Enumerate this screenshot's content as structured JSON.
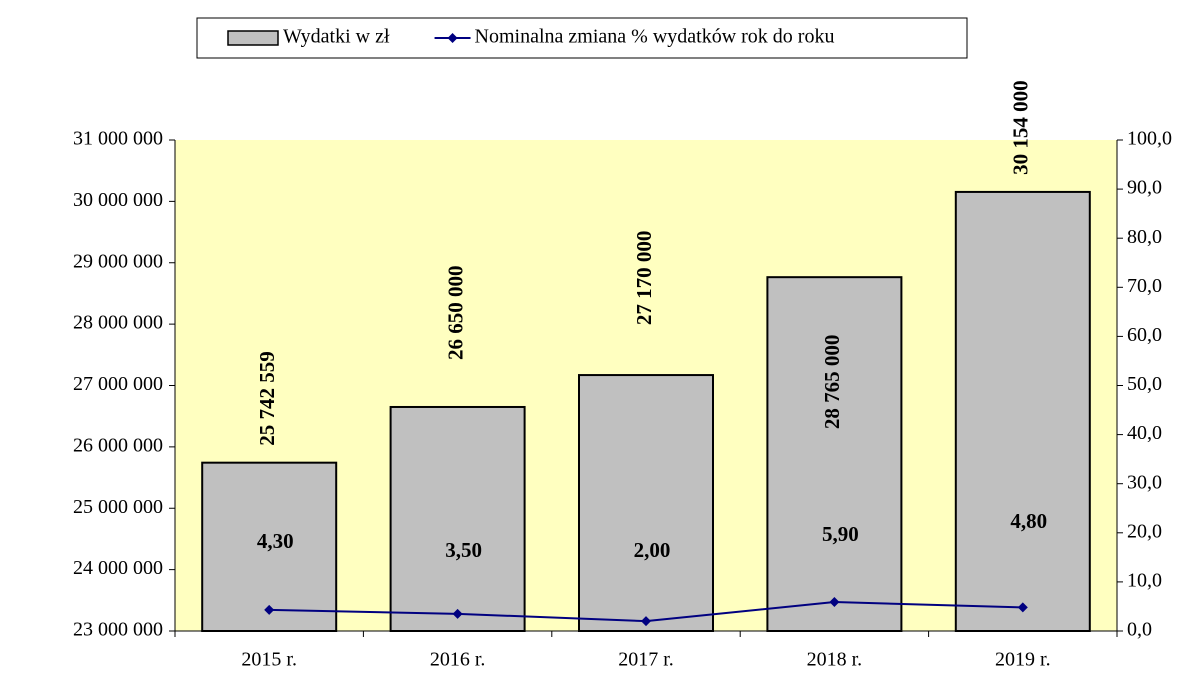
{
  "chart_data": {
    "type": "bar",
    "categories": [
      "2015 r.",
      "2016 r.",
      "2017 r.",
      "2018 r.",
      "2019 r."
    ],
    "series": [
      {
        "name": "Wydatki w zł",
        "type": "bar",
        "color": "#c0c0c0",
        "values": [
          25742559,
          26650000,
          27170000,
          28765000,
          30154000
        ],
        "value_labels": [
          "25 742 559",
          "26 650 000",
          "27 170 000",
          "28 765 000",
          "30 154 000"
        ]
      },
      {
        "name": "Nominalna zmiana % wydatków rok do roku",
        "type": "line",
        "axis": "y2",
        "color": "#000080",
        "values": [
          4.3,
          3.5,
          2.0,
          5.9,
          4.8
        ],
        "value_labels": [
          "4,30",
          "3,50",
          "2,00",
          "5,90",
          "4,80"
        ]
      }
    ],
    "ylim": [
      23000000,
      31000000
    ],
    "yticks": [
      {
        "value": 23000000,
        "label": "23 000 000"
      },
      {
        "value": 24000000,
        "label": "24 000 000"
      },
      {
        "value": 25000000,
        "label": "25 000 000"
      },
      {
        "value": 26000000,
        "label": "26 000 000"
      },
      {
        "value": 27000000,
        "label": "27 000 000"
      },
      {
        "value": 28000000,
        "label": "28 000 000"
      },
      {
        "value": 29000000,
        "label": "29 000 000"
      },
      {
        "value": 30000000,
        "label": "30 000 000"
      },
      {
        "value": 31000000,
        "label": "31 000 000"
      }
    ],
    "y2lim": [
      0,
      100
    ],
    "y2ticks": [
      {
        "value": 0,
        "label": "0,0"
      },
      {
        "value": 10,
        "label": "10,0"
      },
      {
        "value": 20,
        "label": "20,0"
      },
      {
        "value": 30,
        "label": "30,0"
      },
      {
        "value": 40,
        "label": "40,0"
      },
      {
        "value": 50,
        "label": "50,0"
      },
      {
        "value": 60,
        "label": "60,0"
      },
      {
        "value": 70,
        "label": "70,0"
      },
      {
        "value": 80,
        "label": "80,0"
      },
      {
        "value": 90,
        "label": "90,0"
      },
      {
        "value": 100,
        "label": "100,0"
      }
    ],
    "plot_background": "#ffffc0",
    "legend": "top"
  }
}
